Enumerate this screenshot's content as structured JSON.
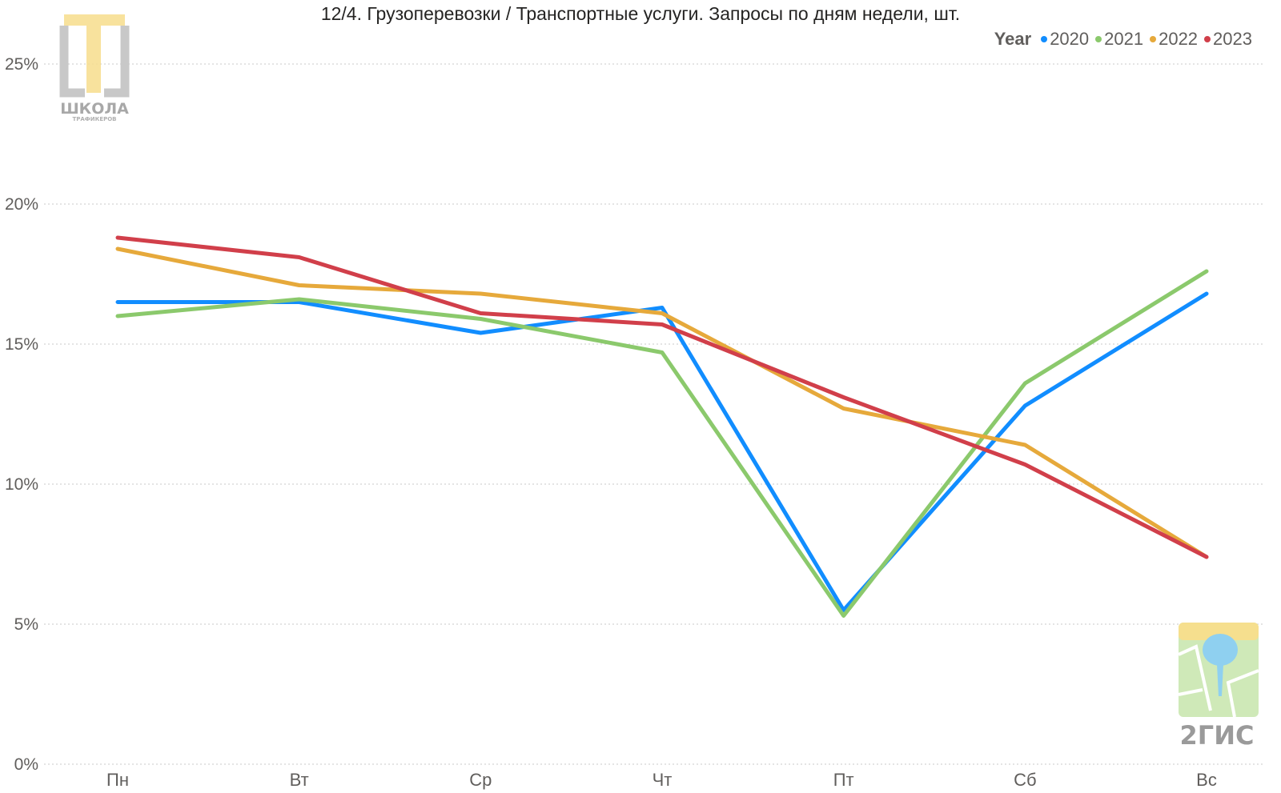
{
  "chart_data": {
    "type": "line",
    "title": "12/4. Грузоперевозки / Транспортные услуги. Запросы по дням недели, шт.",
    "legend_title": "Year",
    "legend_placement": "top-right",
    "categories": [
      "Пн",
      "Вт",
      "Ср",
      "Чт",
      "Пт",
      "Сб",
      "Вс"
    ],
    "y_ticks": [
      "0%",
      "5%",
      "10%",
      "15%",
      "20%",
      "25%"
    ],
    "ylim": [
      0,
      26
    ],
    "grid": true,
    "series": [
      {
        "name": "2020",
        "color": "#118DFF",
        "values": [
          16.5,
          16.5,
          15.4,
          16.3,
          5.5,
          12.8,
          16.8
        ]
      },
      {
        "name": "2021",
        "color": "#8BC96C",
        "values": [
          16.0,
          16.6,
          15.9,
          14.7,
          5.3,
          13.6,
          17.6
        ]
      },
      {
        "name": "2022",
        "color": "#E6A93B",
        "values": [
          18.4,
          17.1,
          16.8,
          16.1,
          12.7,
          11.4,
          7.4
        ]
      },
      {
        "name": "2023",
        "color": "#D13F4A",
        "values": [
          18.8,
          18.1,
          16.1,
          15.7,
          13.1,
          10.7,
          7.4
        ]
      }
    ]
  },
  "logos": {
    "school": {
      "line1": "ШКОЛА",
      "line2": "ТРАФИКЕРОВ",
      "icon": "school-logo-icon"
    },
    "twogis": {
      "text": "2ГИС",
      "icon": "twogis-logo-icon"
    }
  }
}
